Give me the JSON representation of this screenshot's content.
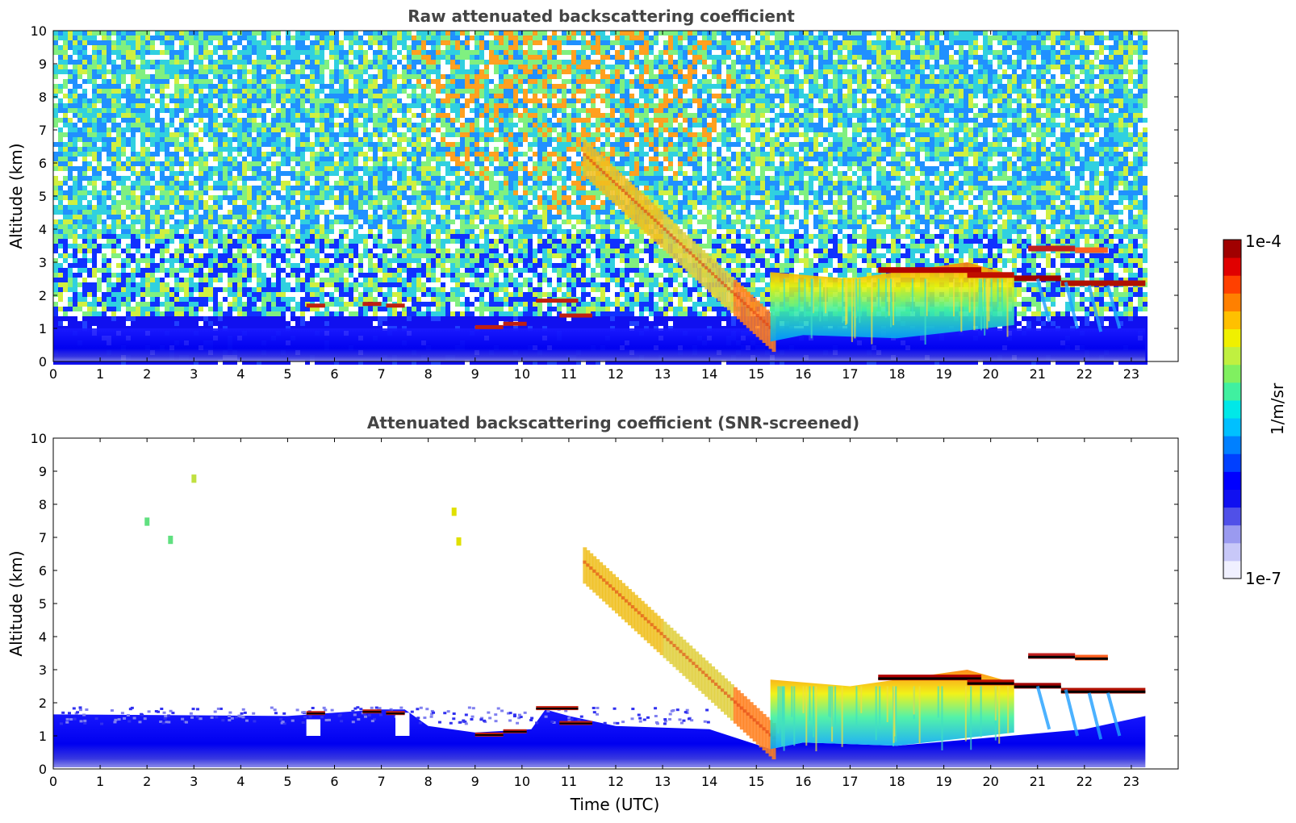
{
  "chart_data": [
    {
      "type": "heatmap",
      "title": "Raw attenuated backscattering coefficient",
      "xlabel": "",
      "ylabel": "Altitude (km)",
      "xlim": [
        0,
        24
      ],
      "ylim": [
        0,
        10
      ],
      "xticks": [
        "0",
        "1",
        "2",
        "3",
        "4",
        "5",
        "6",
        "7",
        "8",
        "9",
        "10",
        "11",
        "12",
        "13",
        "14",
        "15",
        "16",
        "17",
        "18",
        "19",
        "20",
        "21",
        "22",
        "23"
      ],
      "yticks": [
        "0",
        "1",
        "2",
        "3",
        "4",
        "5",
        "6",
        "7",
        "8",
        "9",
        "10"
      ],
      "data_end_time": 23.3,
      "features": [
        {
          "name": "boundary layer",
          "t": [
            0,
            23.3
          ],
          "alt": [
            0,
            1.5
          ]
        },
        {
          "name": "thin layer",
          "t": [
            5.4,
            7.6
          ],
          "alt": [
            1.6,
            1.8
          ]
        },
        {
          "name": "cloud layer",
          "t": [
            8.7,
            12.1
          ],
          "alt": [
            1.0,
            1.9
          ]
        },
        {
          "name": "descending layer",
          "t": [
            11.3,
            15.4
          ],
          "alt_start": 6.1,
          "alt_end": 0.7
        },
        {
          "name": "afternoon cloud layer",
          "t": [
            15.4,
            23.3
          ],
          "alt": [
            0.7,
            3.7
          ]
        }
      ]
    },
    {
      "type": "heatmap",
      "title": "Attenuated backscattering coefficient (SNR-screened)",
      "xlabel": "Time (UTC)",
      "ylabel": "Altitude (km)",
      "xlim": [
        0,
        24
      ],
      "ylim": [
        0,
        10
      ],
      "xticks": [
        "0",
        "1",
        "2",
        "3",
        "4",
        "5",
        "6",
        "7",
        "8",
        "9",
        "10",
        "11",
        "12",
        "13",
        "14",
        "15",
        "16",
        "17",
        "18",
        "19",
        "20",
        "21",
        "22",
        "23"
      ],
      "yticks": [
        "0",
        "1",
        "2",
        "3",
        "4",
        "5",
        "6",
        "7",
        "8",
        "9",
        "10"
      ],
      "data_end_time": 23.3
    }
  ],
  "colorbar": {
    "label": "1/m/sr",
    "max_label": "1e-4",
    "min_label": "1e-7",
    "scale": "log",
    "colors": [
      "#f0f0ff",
      "#c8c8f8",
      "#9a9af0",
      "#5050e8",
      "#1010f0",
      "#0000ff",
      "#0040ff",
      "#0080ff",
      "#00c0ff",
      "#00e8e8",
      "#40f0a0",
      "#80f060",
      "#c0f040",
      "#f0f000",
      "#ffc000",
      "#ff8000",
      "#ff4000",
      "#e00000",
      "#a00000"
    ]
  }
}
